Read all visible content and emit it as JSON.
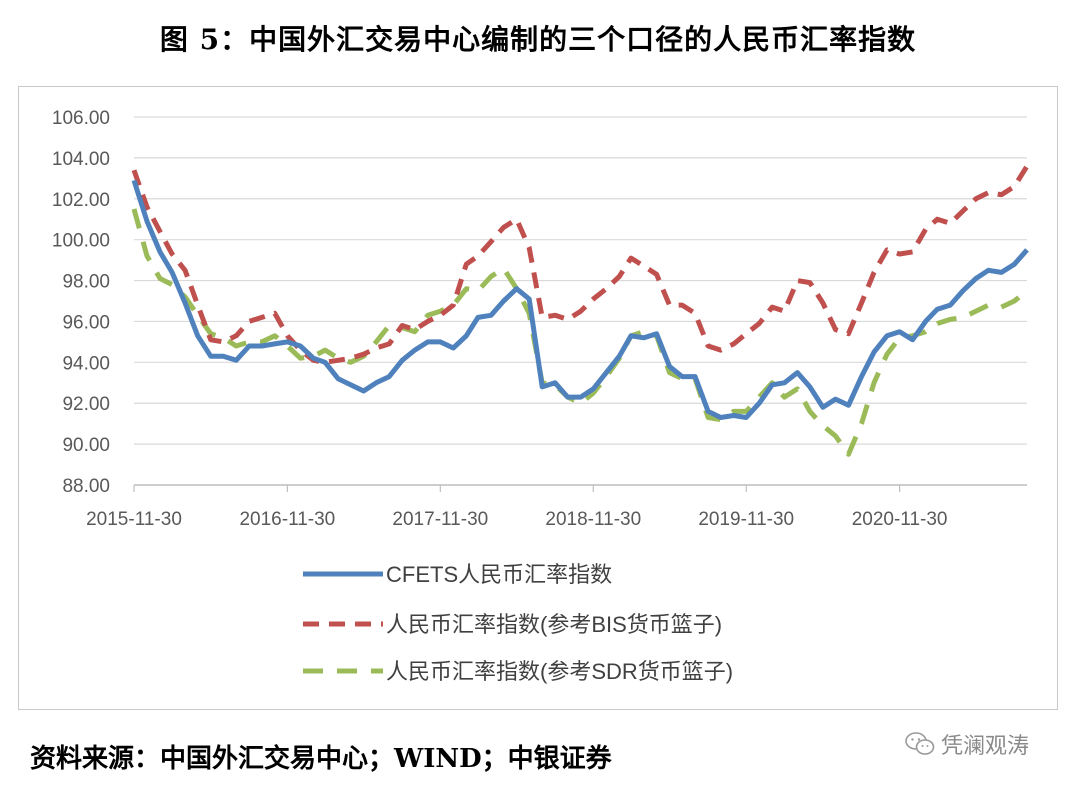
{
  "title": "图 5：中国外汇交易中心编制的三个口径的人民币汇率指数",
  "source": "资料来源：中国外汇交易中心；WIND；中银证券",
  "watermark": "凭澜观涛",
  "watermark_icon": "wechat-icon",
  "chart_data": {
    "type": "line",
    "ylim": [
      88,
      106
    ],
    "yticks": [
      "88.00",
      "90.00",
      "92.00",
      "94.00",
      "96.00",
      "98.00",
      "100.00",
      "102.00",
      "104.00",
      "106.00"
    ],
    "xticks": [
      "2015-11-30",
      "2016-11-30",
      "2017-11-30",
      "2018-11-30",
      "2019-11-30",
      "2020-11-30"
    ],
    "x_range": [
      "2015-11-30",
      "2021-09-30"
    ],
    "grid": "horizontal",
    "legend_position": "bottom",
    "series": [
      {
        "name": "CFETS人民币汇率指数",
        "color": "#4f81bd",
        "style": "solid",
        "x": [
          "2015-11-30",
          "2015-12-31",
          "2016-01-31",
          "2016-02-29",
          "2016-03-31",
          "2016-04-30",
          "2016-05-31",
          "2016-06-30",
          "2016-07-31",
          "2016-08-31",
          "2016-09-30",
          "2016-10-31",
          "2016-11-30",
          "2016-12-31",
          "2017-01-31",
          "2017-02-28",
          "2017-03-31",
          "2017-04-30",
          "2017-05-31",
          "2017-06-30",
          "2017-07-31",
          "2017-08-31",
          "2017-09-30",
          "2017-10-31",
          "2017-11-30",
          "2017-12-31",
          "2018-01-31",
          "2018-02-28",
          "2018-03-31",
          "2018-04-30",
          "2018-05-31",
          "2018-06-30",
          "2018-07-31",
          "2018-08-31",
          "2018-09-30",
          "2018-10-31",
          "2018-11-30",
          "2018-12-31",
          "2019-01-31",
          "2019-02-28",
          "2019-03-31",
          "2019-04-30",
          "2019-05-31",
          "2019-06-30",
          "2019-07-31",
          "2019-08-31",
          "2019-09-30",
          "2019-10-31",
          "2019-11-30",
          "2019-12-31",
          "2020-01-31",
          "2020-02-29",
          "2020-03-31",
          "2020-04-30",
          "2020-05-31",
          "2020-06-30",
          "2020-07-31",
          "2020-08-31",
          "2020-09-30",
          "2020-10-31",
          "2020-11-30",
          "2020-12-31",
          "2021-01-31",
          "2021-02-28",
          "2021-03-31",
          "2021-04-30",
          "2021-05-31",
          "2021-06-30",
          "2021-07-31",
          "2021-08-31",
          "2021-09-30"
        ],
        "values": [
          102.9,
          100.9,
          99.4,
          98.4,
          96.9,
          95.3,
          94.3,
          94.3,
          94.1,
          94.8,
          94.8,
          94.9,
          95.0,
          94.8,
          94.2,
          94.0,
          93.2,
          92.9,
          92.6,
          93.0,
          93.3,
          94.1,
          94.6,
          95.0,
          95.0,
          94.7,
          95.3,
          96.2,
          96.3,
          97.0,
          97.6,
          97.1,
          92.8,
          93.0,
          92.3,
          92.3,
          92.7,
          93.5,
          94.3,
          95.3,
          95.2,
          95.4,
          93.8,
          93.3,
          93.3,
          91.6,
          91.3,
          91.4,
          91.3,
          92.0,
          92.9,
          93.0,
          93.5,
          92.8,
          91.8,
          92.2,
          91.9,
          93.3,
          94.5,
          95.3,
          95.5,
          95.1,
          96.0,
          96.6,
          96.8,
          97.5,
          98.1,
          98.5,
          98.4,
          98.8,
          99.5
        ]
      },
      {
        "name": "人民币汇率指数(参考BIS货币篮子)",
        "color": "#c0504d",
        "style": "dashed",
        "x": [
          "2015-11-30",
          "2015-12-31",
          "2016-01-31",
          "2016-02-29",
          "2016-03-31",
          "2016-04-30",
          "2016-05-31",
          "2016-06-30",
          "2016-07-31",
          "2016-08-31",
          "2016-09-30",
          "2016-10-31",
          "2016-11-30",
          "2016-12-31",
          "2017-01-31",
          "2017-02-28",
          "2017-03-31",
          "2017-04-30",
          "2017-05-31",
          "2017-06-30",
          "2017-07-31",
          "2017-08-31",
          "2017-09-30",
          "2017-10-31",
          "2017-11-30",
          "2017-12-31",
          "2018-01-31",
          "2018-02-28",
          "2018-03-31",
          "2018-04-30",
          "2018-05-31",
          "2018-06-30",
          "2018-07-31",
          "2018-08-31",
          "2018-09-30",
          "2018-10-31",
          "2018-11-30",
          "2018-12-31",
          "2019-01-31",
          "2019-02-28",
          "2019-03-31",
          "2019-04-30",
          "2019-05-31",
          "2019-06-30",
          "2019-07-31",
          "2019-08-31",
          "2019-09-30",
          "2019-10-31",
          "2019-11-30",
          "2019-12-31",
          "2020-01-31",
          "2020-02-29",
          "2020-03-31",
          "2020-04-30",
          "2020-05-31",
          "2020-06-30",
          "2020-07-31",
          "2020-08-31",
          "2020-09-30",
          "2020-10-31",
          "2020-11-30",
          "2020-12-31",
          "2021-01-31",
          "2021-02-28",
          "2021-03-31",
          "2021-04-30",
          "2021-05-31",
          "2021-06-30",
          "2021-07-31",
          "2021-08-31",
          "2021-09-30"
        ],
        "values": [
          103.4,
          101.6,
          100.4,
          99.3,
          98.5,
          96.8,
          95.1,
          95.0,
          95.3,
          96.0,
          96.2,
          96.4,
          95.3,
          94.6,
          94.1,
          94.0,
          94.1,
          94.2,
          94.4,
          94.7,
          94.9,
          95.8,
          95.6,
          96.0,
          96.3,
          96.8,
          98.8,
          99.2,
          99.9,
          100.6,
          101.0,
          99.6,
          96.2,
          96.3,
          96.1,
          96.5,
          97.1,
          97.6,
          98.2,
          99.1,
          98.7,
          98.3,
          96.8,
          96.8,
          96.4,
          94.8,
          94.6,
          94.9,
          95.4,
          95.9,
          96.7,
          96.5,
          98.0,
          97.9,
          96.9,
          95.6,
          95.4,
          96.9,
          98.4,
          99.5,
          99.3,
          99.4,
          100.5,
          101.0,
          100.8,
          101.4,
          102.0,
          102.3,
          102.2,
          102.6,
          103.6
        ]
      },
      {
        "name": "人民币汇率指数(参考SDR货币篮子)",
        "color": "#9bbb59",
        "style": "dashed",
        "x": [
          "2015-11-30",
          "2015-12-31",
          "2016-01-31",
          "2016-02-29",
          "2016-03-31",
          "2016-04-30",
          "2016-05-31",
          "2016-06-30",
          "2016-07-31",
          "2016-08-31",
          "2016-09-30",
          "2016-10-31",
          "2016-11-30",
          "2016-12-31",
          "2017-01-31",
          "2017-02-28",
          "2017-03-31",
          "2017-04-30",
          "2017-05-31",
          "2017-06-30",
          "2017-07-31",
          "2017-08-31",
          "2017-09-30",
          "2017-10-31",
          "2017-11-30",
          "2017-12-31",
          "2018-01-31",
          "2018-02-28",
          "2018-03-31",
          "2018-04-30",
          "2018-05-31",
          "2018-06-30",
          "2018-07-31",
          "2018-08-31",
          "2018-09-30",
          "2018-10-31",
          "2018-11-30",
          "2018-12-31",
          "2019-01-31",
          "2019-02-28",
          "2019-03-31",
          "2019-04-30",
          "2019-05-31",
          "2019-06-30",
          "2019-07-31",
          "2019-08-31",
          "2019-09-30",
          "2019-10-31",
          "2019-11-30",
          "2019-12-31",
          "2020-01-31",
          "2020-02-29",
          "2020-03-31",
          "2020-04-30",
          "2020-05-31",
          "2020-06-30",
          "2020-07-31",
          "2020-08-31",
          "2020-09-30",
          "2020-10-31",
          "2020-11-30",
          "2020-12-31",
          "2021-01-31",
          "2021-02-28",
          "2021-03-31",
          "2021-04-30",
          "2021-05-31",
          "2021-06-30",
          "2021-07-31",
          "2021-08-31",
          "2021-09-30"
        ],
        "values": [
          101.5,
          99.2,
          98.1,
          97.8,
          97.2,
          96.3,
          95.4,
          95.2,
          94.8,
          95.0,
          95.0,
          95.3,
          94.8,
          94.2,
          94.3,
          94.6,
          94.2,
          94.0,
          94.3,
          95.0,
          95.8,
          95.7,
          95.5,
          96.3,
          96.5,
          96.8,
          97.6,
          97.5,
          98.2,
          98.6,
          97.6,
          96.4,
          93.0,
          92.9,
          92.3,
          92.0,
          92.5,
          93.3,
          94.2,
          95.3,
          95.5,
          95.3,
          93.5,
          93.2,
          93.2,
          91.3,
          91.2,
          91.6,
          91.6,
          92.3,
          93.0,
          92.3,
          92.7,
          91.6,
          90.9,
          90.4,
          89.5,
          91.0,
          93.0,
          94.4,
          95.2,
          95.3,
          95.5,
          95.9,
          96.1,
          96.2,
          96.5,
          96.8,
          96.7,
          97.0,
          97.5
        ]
      }
    ]
  }
}
